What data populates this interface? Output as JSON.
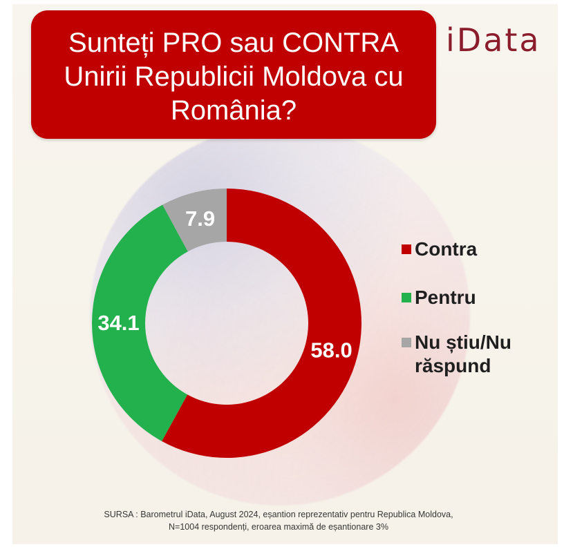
{
  "logo": {
    "text": "iData"
  },
  "colors": {
    "title_banner": "#c00000",
    "title_text": "#ffffff",
    "logo": "#8b1c2c"
  },
  "chart_data": {
    "type": "pie",
    "hole": true,
    "title": "Sunteți PRO sau CONTRA Unirii Republicii Moldova cu România?",
    "categories": [
      "Contra",
      "Pentru",
      "Nu știu/Nu răspund"
    ],
    "values": [
      58.0,
      34.1,
      7.9
    ],
    "data_labels": [
      "58.0",
      "34.1",
      "7.9"
    ],
    "colors": [
      "#c00000",
      "#22b14c",
      "#a6a6a6"
    ],
    "legend_position": "right"
  },
  "source": {
    "line1": "SURSA : Barometrul iData, August 2024, eșantion reprezentativ pentru Republica Moldova,",
    "line2": "N=1004 respondenți, eroarea maximă de eșantionare 3%"
  }
}
